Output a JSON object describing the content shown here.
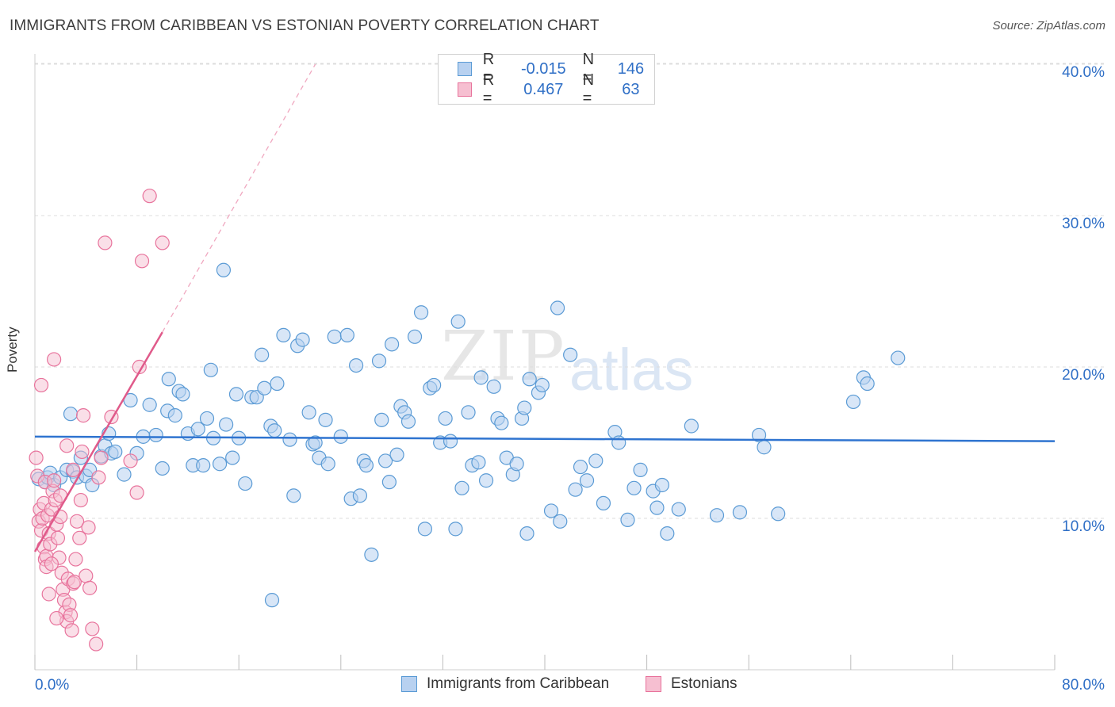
{
  "title": "IMMIGRANTS FROM CARIBBEAN VS ESTONIAN POVERTY CORRELATION CHART",
  "source": "Source: ZipAtlas.com",
  "watermark": {
    "zip": "ZIP",
    "atlas": "atlas"
  },
  "legend": {
    "row1": {
      "r_label": "R =",
      "r_value": "-0.015",
      "n_label": "N =",
      "n_value": "146"
    },
    "row2": {
      "r_label": "R =",
      "r_value": "0.467",
      "n_label": "N =",
      "n_value": "63"
    }
  },
  "colors": {
    "blue": "#5b9bd5",
    "blue_fill": "#b8d1f0",
    "pink": "#e8739c",
    "pink_fill": "#f6bfd1",
    "trend_blue": "#2f74d0",
    "trend_pink": "#e05a8a"
  },
  "chart_data": {
    "type": "scatter",
    "xlabel": "",
    "ylabel": "Poverty",
    "xlim": [
      0,
      80
    ],
    "ylim": [
      0,
      40
    ],
    "x_tick_labels": [
      "0.0%",
      "80.0%"
    ],
    "y_tick_labels": [
      "10.0%",
      "20.0%",
      "30.0%",
      "40.0%"
    ],
    "y_ticks": [
      10,
      20,
      30,
      40
    ],
    "grid": true,
    "legend_position": "top-center",
    "series": [
      {
        "name": "Immigrants from Caribbean",
        "trend": {
          "x0": 0,
          "y0": 15.4,
          "x1": 80,
          "y1": 15.1
        },
        "points": [
          [
            0.3,
            12.6
          ],
          [
            0.8,
            12.4
          ],
          [
            1.0,
            12.7
          ],
          [
            1.2,
            13.0
          ],
          [
            1.5,
            12.2
          ],
          [
            2.0,
            12.7
          ],
          [
            2.5,
            13.2
          ],
          [
            2.8,
            16.9
          ],
          [
            3.0,
            13.1
          ],
          [
            3.3,
            12.7
          ],
          [
            3.6,
            14.0
          ],
          [
            4.0,
            12.8
          ],
          [
            4.3,
            13.2
          ],
          [
            4.5,
            12.2
          ],
          [
            5.2,
            14.1
          ],
          [
            5.5,
            14.8
          ],
          [
            5.8,
            15.6
          ],
          [
            6.0,
            14.3
          ],
          [
            6.3,
            14.4
          ],
          [
            7.0,
            12.9
          ],
          [
            7.5,
            17.8
          ],
          [
            8.0,
            14.3
          ],
          [
            8.5,
            15.4
          ],
          [
            9.0,
            17.5
          ],
          [
            9.5,
            15.5
          ],
          [
            10.0,
            13.3
          ],
          [
            10.4,
            17.1
          ],
          [
            10.5,
            19.2
          ],
          [
            11.0,
            16.8
          ],
          [
            11.3,
            18.4
          ],
          [
            11.6,
            18.2
          ],
          [
            12.0,
            15.6
          ],
          [
            12.4,
            13.5
          ],
          [
            12.8,
            15.9
          ],
          [
            13.2,
            13.5
          ],
          [
            13.5,
            16.6
          ],
          [
            13.8,
            19.8
          ],
          [
            14.0,
            15.3
          ],
          [
            14.5,
            13.6
          ],
          [
            14.8,
            26.4
          ],
          [
            15.0,
            16.2
          ],
          [
            15.5,
            14.0
          ],
          [
            15.8,
            18.2
          ],
          [
            16.0,
            15.3
          ],
          [
            16.5,
            12.3
          ],
          [
            17.0,
            18.0
          ],
          [
            17.4,
            18.0
          ],
          [
            17.8,
            20.8
          ],
          [
            18.0,
            18.6
          ],
          [
            18.5,
            16.1
          ],
          [
            18.8,
            15.8
          ],
          [
            19.0,
            18.9
          ],
          [
            19.5,
            22.1
          ],
          [
            20.0,
            15.2
          ],
          [
            20.3,
            11.5
          ],
          [
            20.6,
            21.4
          ],
          [
            21.0,
            21.8
          ],
          [
            21.5,
            17.0
          ],
          [
            21.8,
            14.9
          ],
          [
            22.0,
            15.0
          ],
          [
            22.3,
            14.0
          ],
          [
            22.8,
            16.5
          ],
          [
            23.0,
            13.6
          ],
          [
            23.5,
            22.0
          ],
          [
            24.0,
            15.4
          ],
          [
            24.5,
            22.1
          ],
          [
            24.8,
            11.3
          ],
          [
            25.2,
            20.1
          ],
          [
            25.5,
            11.5
          ],
          [
            25.8,
            13.8
          ],
          [
            26.0,
            13.5
          ],
          [
            26.4,
            7.6
          ],
          [
            27.0,
            20.4
          ],
          [
            27.2,
            16.5
          ],
          [
            27.5,
            13.8
          ],
          [
            27.8,
            12.4
          ],
          [
            28.0,
            21.5
          ],
          [
            28.4,
            14.2
          ],
          [
            28.7,
            17.4
          ],
          [
            29.0,
            17.0
          ],
          [
            29.3,
            16.4
          ],
          [
            29.8,
            22.0
          ],
          [
            30.3,
            23.6
          ],
          [
            30.6,
            9.3
          ],
          [
            31.0,
            18.6
          ],
          [
            31.3,
            18.8
          ],
          [
            31.8,
            15.0
          ],
          [
            32.2,
            16.6
          ],
          [
            32.6,
            15.1
          ],
          [
            33.0,
            9.3
          ],
          [
            33.2,
            23.0
          ],
          [
            33.5,
            12.0
          ],
          [
            34.0,
            17.0
          ],
          [
            34.3,
            13.5
          ],
          [
            34.8,
            13.7
          ],
          [
            35.0,
            19.3
          ],
          [
            35.4,
            12.5
          ],
          [
            36.0,
            18.7
          ],
          [
            36.3,
            16.6
          ],
          [
            36.6,
            16.3
          ],
          [
            37.0,
            14.0
          ],
          [
            37.5,
            12.9
          ],
          [
            37.8,
            13.6
          ],
          [
            38.2,
            16.6
          ],
          [
            38.4,
            17.3
          ],
          [
            38.6,
            9.0
          ],
          [
            38.8,
            19.2
          ],
          [
            39.5,
            18.3
          ],
          [
            39.8,
            18.8
          ],
          [
            40.5,
            10.5
          ],
          [
            41.0,
            23.9
          ],
          [
            41.2,
            9.8
          ],
          [
            42.0,
            20.8
          ],
          [
            42.4,
            11.9
          ],
          [
            42.8,
            13.4
          ],
          [
            43.3,
            12.5
          ],
          [
            44.0,
            13.8
          ],
          [
            44.6,
            11.0
          ],
          [
            45.5,
            15.7
          ],
          [
            45.8,
            15.0
          ],
          [
            46.5,
            9.9
          ],
          [
            47.0,
            12.0
          ],
          [
            47.5,
            13.2
          ],
          [
            48.5,
            11.8
          ],
          [
            48.8,
            10.7
          ],
          [
            49.2,
            12.2
          ],
          [
            49.6,
            9.0
          ],
          [
            50.5,
            10.6
          ],
          [
            51.5,
            16.1
          ],
          [
            53.5,
            10.2
          ],
          [
            55.3,
            10.4
          ],
          [
            56.8,
            15.5
          ],
          [
            57.2,
            14.7
          ],
          [
            58.3,
            10.3
          ],
          [
            64.2,
            17.7
          ],
          [
            65.0,
            19.3
          ],
          [
            65.3,
            18.9
          ],
          [
            67.7,
            20.6
          ],
          [
            18.6,
            4.6
          ]
        ]
      },
      {
        "name": "Estonians",
        "trend": {
          "x0": 0,
          "y0": 7.8,
          "x1": 10,
          "y1": 22.3
        },
        "trend_dashed_to": {
          "x": 22,
          "y": 40
        },
        "points": [
          [
            0.1,
            14.0
          ],
          [
            0.2,
            12.8
          ],
          [
            0.3,
            9.8
          ],
          [
            0.4,
            10.6
          ],
          [
            0.5,
            9.2
          ],
          [
            0.6,
            10.0
          ],
          [
            0.7,
            11.0
          ],
          [
            0.8,
            12.4
          ],
          [
            0.5,
            18.8
          ],
          [
            0.7,
            8.1
          ],
          [
            0.8,
            7.3
          ],
          [
            0.9,
            7.5
          ],
          [
            1.0,
            10.2
          ],
          [
            1.1,
            9.0
          ],
          [
            1.2,
            8.3
          ],
          [
            1.3,
            10.6
          ],
          [
            1.4,
            11.8
          ],
          [
            1.5,
            12.5
          ],
          [
            1.6,
            11.2
          ],
          [
            1.7,
            9.6
          ],
          [
            1.8,
            8.7
          ],
          [
            1.9,
            7.4
          ],
          [
            2.0,
            10.1
          ],
          [
            2.1,
            6.4
          ],
          [
            2.2,
            5.3
          ],
          [
            2.3,
            4.6
          ],
          [
            2.4,
            3.8
          ],
          [
            2.5,
            3.2
          ],
          [
            2.6,
            6.0
          ],
          [
            2.7,
            4.3
          ],
          [
            2.8,
            3.6
          ],
          [
            2.9,
            2.6
          ],
          [
            3.0,
            5.7
          ],
          [
            3.1,
            5.8
          ],
          [
            3.2,
            7.3
          ],
          [
            3.3,
            9.8
          ],
          [
            3.5,
            8.7
          ],
          [
            3.6,
            11.2
          ],
          [
            3.7,
            14.4
          ],
          [
            3.8,
            16.8
          ],
          [
            4.0,
            6.2
          ],
          [
            4.2,
            9.4
          ],
          [
            4.3,
            5.4
          ],
          [
            4.5,
            2.7
          ],
          [
            4.8,
            1.7
          ],
          [
            5.0,
            12.7
          ],
          [
            5.2,
            14.0
          ],
          [
            5.5,
            28.2
          ],
          [
            6.0,
            16.7
          ],
          [
            7.5,
            13.8
          ],
          [
            8.0,
            11.7
          ],
          [
            8.2,
            20.0
          ],
          [
            8.4,
            27.0
          ],
          [
            9.0,
            31.3
          ],
          [
            10.0,
            28.2
          ],
          [
            1.5,
            20.5
          ],
          [
            0.9,
            6.8
          ],
          [
            1.3,
            7.0
          ],
          [
            2.0,
            11.5
          ],
          [
            2.5,
            14.8
          ],
          [
            3.0,
            13.2
          ],
          [
            1.1,
            5.0
          ],
          [
            1.7,
            3.4
          ]
        ]
      }
    ]
  }
}
